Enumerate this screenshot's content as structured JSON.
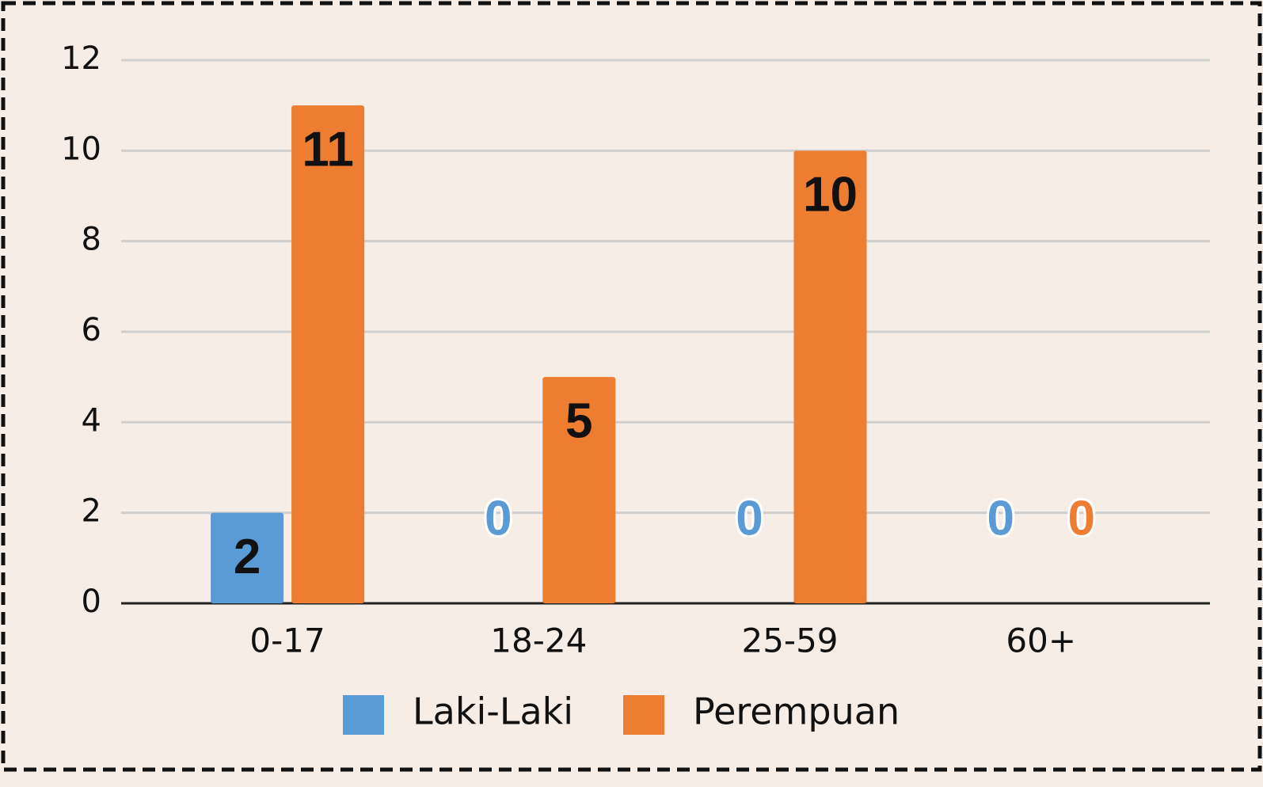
{
  "chart_data": {
    "type": "bar",
    "categories": [
      "0-17",
      "18-24",
      "25-59",
      "60+"
    ],
    "series": [
      {
        "name": "Laki-Laki",
        "color": "#5b9bd5",
        "values": [
          2,
          0,
          0,
          0
        ]
      },
      {
        "name": "Perempuan",
        "color": "#ed7d31",
        "values": [
          11,
          5,
          10,
          0
        ]
      }
    ],
    "ylim": [
      0,
      12
    ],
    "yticks": [
      0,
      2,
      4,
      6,
      8,
      10,
      12
    ],
    "grid": true,
    "legend": "bottom"
  }
}
